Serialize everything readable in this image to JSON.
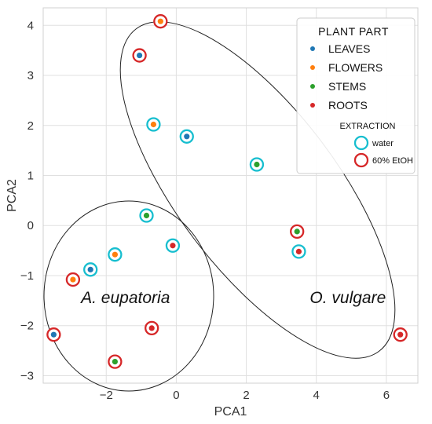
{
  "chart_data": {
    "type": "scatter",
    "xlabel": "PCA1",
    "ylabel": "PCA2",
    "xlim": [
      -3.8,
      6.9
    ],
    "ylim": [
      -3.15,
      4.35
    ],
    "xticks": [
      -2,
      0,
      2,
      4,
      6
    ],
    "xtick_labels": [
      "−2",
      "0",
      "2",
      "4",
      "6"
    ],
    "yticks": [
      -3,
      -2,
      -1,
      0,
      1,
      2,
      3,
      4
    ],
    "ytick_labels": [
      "−3",
      "−2",
      "−1",
      "0",
      "1",
      "2",
      "3",
      "4"
    ],
    "grid": true,
    "legend": {
      "placement": "top-right",
      "title": "PLANT PART",
      "parts": [
        {
          "key": "leaves",
          "label": "LEAVES",
          "color": "#1f77b4"
        },
        {
          "key": "flowers",
          "label": "FLOWERS",
          "color": "#ff7f0e"
        },
        {
          "key": "stems",
          "label": "STEMS",
          "color": "#2ca02c"
        },
        {
          "key": "roots",
          "label": "ROOTS",
          "color": "#d62728"
        }
      ],
      "extraction_title": "EXTRACTION",
      "extractions": [
        {
          "key": "water",
          "label": "water",
          "color": "#17becf"
        },
        {
          "key": "etoh",
          "label": "60% EtOH",
          "color": "#d62728"
        }
      ]
    },
    "groups": [
      {
        "label": "A. eupatoria",
        "label_x": -1.45,
        "label_y": -1.55
      },
      {
        "label": "O. vulgare",
        "label_x": 4.9,
        "label_y": -1.55
      }
    ],
    "points": [
      {
        "x": 0.3,
        "y": 1.78,
        "part": "leaves",
        "extraction": "water"
      },
      {
        "x": -1.05,
        "y": 3.4,
        "part": "leaves",
        "extraction": "etoh"
      },
      {
        "x": -0.65,
        "y": 2.02,
        "part": "flowers",
        "extraction": "water"
      },
      {
        "x": -0.45,
        "y": 4.08,
        "part": "flowers",
        "extraction": "etoh"
      },
      {
        "x": 2.3,
        "y": 1.22,
        "part": "stems",
        "extraction": "water"
      },
      {
        "x": 3.45,
        "y": -0.12,
        "part": "stems",
        "extraction": "etoh"
      },
      {
        "x": 3.5,
        "y": -0.52,
        "part": "roots",
        "extraction": "water"
      },
      {
        "x": 6.4,
        "y": -2.18,
        "part": "roots",
        "extraction": "etoh"
      },
      {
        "x": -2.45,
        "y": -0.88,
        "part": "leaves",
        "extraction": "water"
      },
      {
        "x": -3.5,
        "y": -2.18,
        "part": "leaves",
        "extraction": "etoh"
      },
      {
        "x": -1.75,
        "y": -0.58,
        "part": "flowers",
        "extraction": "water"
      },
      {
        "x": -2.95,
        "y": -1.08,
        "part": "flowers",
        "extraction": "etoh"
      },
      {
        "x": -0.85,
        "y": 0.2,
        "part": "stems",
        "extraction": "water"
      },
      {
        "x": -1.75,
        "y": -2.72,
        "part": "stems",
        "extraction": "etoh"
      },
      {
        "x": -0.1,
        "y": -0.4,
        "part": "roots",
        "extraction": "water"
      },
      {
        "x": -0.7,
        "y": -2.05,
        "part": "roots",
        "extraction": "etoh"
      }
    ]
  }
}
